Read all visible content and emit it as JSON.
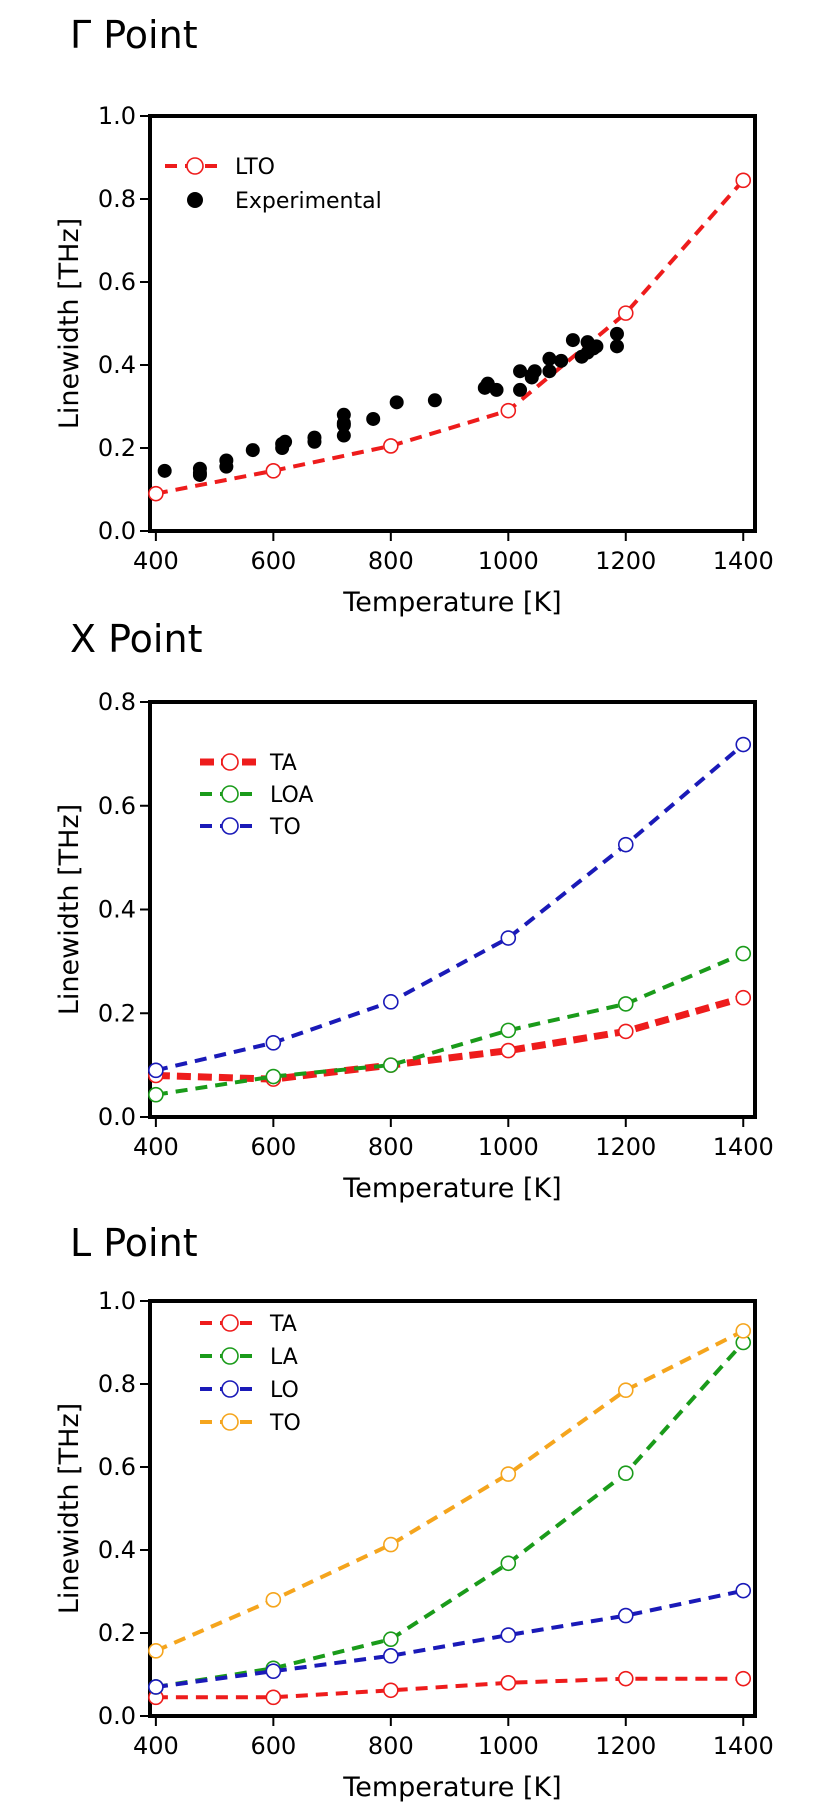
{
  "chart_data": [
    {
      "type": "line",
      "title": "Γ Point",
      "xlabel": "Temperature [K]",
      "ylabel": "Linewidth [THz]",
      "xlim": [
        390,
        1420
      ],
      "ylim": [
        0.0,
        1.0
      ],
      "xticks": [
        400,
        600,
        800,
        1000,
        1200,
        1400
      ],
      "yticks": [
        0.0,
        0.2,
        0.4,
        0.6,
        0.8,
        1.0
      ],
      "ytick_labels": [
        "0.0",
        "0.2",
        "0.4",
        "0.6",
        "0.8",
        "1.0"
      ],
      "legend_position": "top-left",
      "grid": false,
      "series": [
        {
          "name": "LTO",
          "style": "dashed-open-circle",
          "color": "#ee1c1c",
          "x": [
            400,
            600,
            800,
            1000,
            1200,
            1400
          ],
          "y": [
            0.09,
            0.145,
            0.205,
            0.29,
            0.525,
            0.845
          ]
        },
        {
          "name": "Experimental",
          "style": "filled-circle",
          "color": "#000000",
          "x": [
            415,
            475,
            475,
            475,
            520,
            520,
            565,
            615,
            615,
            620,
            670,
            670,
            720,
            720,
            720,
            720,
            770,
            810,
            875,
            960,
            965,
            965,
            980,
            1020,
            1020,
            1040,
            1040,
            1045,
            1070,
            1070,
            1090,
            1110,
            1125,
            1135,
            1135,
            1145,
            1150,
            1185,
            1185
          ],
          "y": [
            0.145,
            0.135,
            0.14,
            0.15,
            0.155,
            0.17,
            0.195,
            0.2,
            0.21,
            0.215,
            0.215,
            0.225,
            0.23,
            0.255,
            0.26,
            0.28,
            0.27,
            0.31,
            0.315,
            0.345,
            0.35,
            0.355,
            0.34,
            0.34,
            0.385,
            0.37,
            0.375,
            0.385,
            0.385,
            0.415,
            0.41,
            0.46,
            0.42,
            0.43,
            0.455,
            0.44,
            0.445,
            0.445,
            0.475
          ]
        }
      ]
    },
    {
      "type": "line",
      "title": "X Point",
      "xlabel": "Temperature [K]",
      "ylabel": "Linewidth [THz]",
      "xlim": [
        390,
        1420
      ],
      "ylim": [
        0.0,
        0.8
      ],
      "xticks": [
        400,
        600,
        800,
        1000,
        1200,
        1400
      ],
      "yticks": [
        0.0,
        0.2,
        0.4,
        0.6,
        0.8
      ],
      "ytick_labels": [
        "0.0",
        "0.2",
        "0.4",
        "0.6",
        "0.8"
      ],
      "legend_position": "top-left",
      "grid": false,
      "series": [
        {
          "name": "TA",
          "style": "thick-dashed-open-circle",
          "color": "#ee1c1c",
          "x": [
            400,
            600,
            800,
            1000,
            1200,
            1400
          ],
          "y": [
            0.08,
            0.073,
            0.1,
            0.128,
            0.165,
            0.23
          ]
        },
        {
          "name": "LOA",
          "style": "dashed-open-circle",
          "color": "#1a9b1a",
          "x": [
            400,
            600,
            800,
            1000,
            1200,
            1400
          ],
          "y": [
            0.043,
            0.078,
            0.1,
            0.167,
            0.218,
            0.315
          ]
        },
        {
          "name": "TO",
          "style": "dashed-open-circle",
          "color": "#1a1ab8",
          "x": [
            400,
            600,
            800,
            1000,
            1200,
            1400
          ],
          "y": [
            0.09,
            0.143,
            0.222,
            0.345,
            0.525,
            0.718
          ]
        }
      ]
    },
    {
      "type": "line",
      "title": "L Point",
      "xlabel": "Temperature [K]",
      "ylabel": "Linewidth [THz]",
      "xlim": [
        390,
        1420
      ],
      "ylim": [
        0.0,
        1.0
      ],
      "xticks": [
        400,
        600,
        800,
        1000,
        1200,
        1400
      ],
      "yticks": [
        0.0,
        0.2,
        0.4,
        0.6,
        0.8,
        1.0
      ],
      "ytick_labels": [
        "0.0",
        "0.2",
        "0.4",
        "0.6",
        "0.8",
        "1.0"
      ],
      "legend_position": "top-left",
      "grid": false,
      "series": [
        {
          "name": "TA",
          "style": "dashed-open-circle",
          "color": "#ee1c1c",
          "x": [
            400,
            600,
            800,
            1000,
            1200,
            1400
          ],
          "y": [
            0.045,
            0.045,
            0.062,
            0.08,
            0.09,
            0.09
          ]
        },
        {
          "name": "LA",
          "style": "dashed-open-circle",
          "color": "#1a9b1a",
          "x": [
            400,
            600,
            800,
            1000,
            1200,
            1400
          ],
          "y": [
            0.07,
            0.115,
            0.185,
            0.368,
            0.585,
            0.9
          ]
        },
        {
          "name": "LO",
          "style": "dashed-open-circle",
          "color": "#1a1ab8",
          "x": [
            400,
            600,
            800,
            1000,
            1200,
            1400
          ],
          "y": [
            0.07,
            0.108,
            0.145,
            0.195,
            0.242,
            0.302
          ]
        },
        {
          "name": "TO",
          "style": "dashed-open-circle",
          "color": "#f5a51d",
          "x": [
            400,
            600,
            800,
            1000,
            1200,
            1400
          ],
          "y": [
            0.157,
            0.28,
            0.413,
            0.583,
            0.785,
            0.928
          ]
        }
      ]
    }
  ]
}
